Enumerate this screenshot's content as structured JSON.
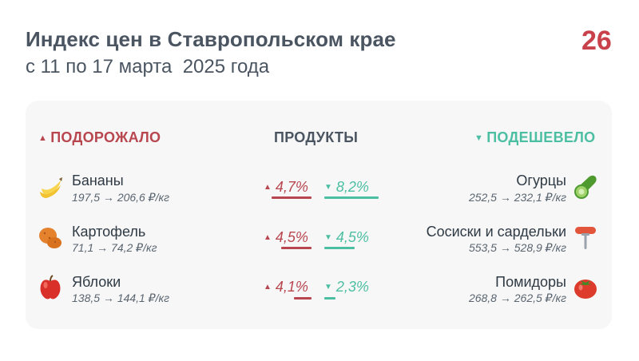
{
  "header": {
    "title": "Индекс цен в Ставропольском крае",
    "subtitle": "с 11 по 17 марта  2025 года",
    "logo_text": "26"
  },
  "columns": {
    "up": "ПОДОРОЖАЛО",
    "middle": "ПРОДУКТЫ",
    "down": "ПОДЕШЕВЕЛО"
  },
  "colors": {
    "up": "#b8464f",
    "down": "#4cbfa3",
    "text": "#4a5561"
  },
  "risen": [
    {
      "name": "Бананы",
      "price": "197,5 → 206,6 ₽/кг",
      "change": "4,7%",
      "icon": "banana-icon"
    },
    {
      "name": "Картофель",
      "price": "71,1 → 74,2 ₽/кг",
      "change": "4,5%",
      "icon": "potato-icon"
    },
    {
      "name": "Яблоки",
      "price": "138,5 → 144,1 ₽/кг",
      "change": "4,1%",
      "icon": "apple-icon"
    }
  ],
  "fallen": [
    {
      "name": "Огурцы",
      "price": "252,5 → 232,1 ₽/кг",
      "change": "8,2%",
      "icon": "cucumber-icon"
    },
    {
      "name": "Сосиски и сардельки",
      "price": "553,5 → 528,9 ₽/кг",
      "change": "4,5%",
      "icon": "sausage-icon"
    },
    {
      "name": "Помидоры",
      "price": "268,8 → 262,5 ₽/кг",
      "change": "2,3%",
      "icon": "tomato-icon"
    }
  ]
}
